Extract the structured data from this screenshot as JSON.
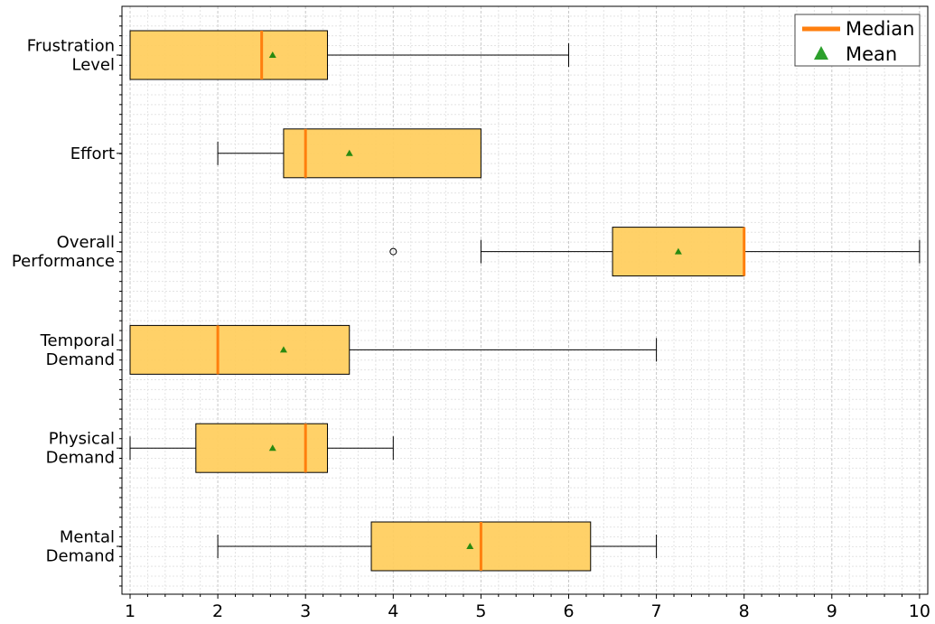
{
  "chart_data": {
    "type": "boxplot",
    "orientation": "horizontal",
    "title": "",
    "xlabel": "",
    "ylabel": "",
    "xlim": [
      0.92,
      10.1
    ],
    "x_ticks": [
      1,
      2,
      3,
      4,
      5,
      6,
      7,
      8,
      9,
      10
    ],
    "grid": true,
    "legend": {
      "position": "top-right",
      "entries": [
        {
          "label": "Median",
          "marker": "line",
          "color": "#ff7f0e"
        },
        {
          "label": "Mean",
          "marker": "triangle",
          "color": "#2ca02c"
        }
      ]
    },
    "colors": {
      "box_fill": "#ffcd5c",
      "median": "#ff7f0e",
      "mean": "#2a8a10",
      "grid": "#d3d3d3"
    },
    "categories": [
      {
        "lines": [
          "Frustration",
          "Level"
        ],
        "whisker_low": 1,
        "q1": 1,
        "median": 2.5,
        "q3": 3.25,
        "whisker_high": 6,
        "mean": 2.625,
        "outliers": []
      },
      {
        "lines": [
          "Effort"
        ],
        "whisker_low": 2,
        "q1": 2.75,
        "median": 3,
        "q3": 5,
        "whisker_high": 5,
        "mean": 3.5,
        "outliers": []
      },
      {
        "lines": [
          "Overall",
          "Performance"
        ],
        "whisker_low": 5,
        "q1": 6.5,
        "median": 8,
        "q3": 8,
        "whisker_high": 10,
        "mean": 7.25,
        "outliers": [
          4
        ]
      },
      {
        "lines": [
          "Temporal",
          "Demand"
        ],
        "whisker_low": 1,
        "q1": 1,
        "median": 2,
        "q3": 3.5,
        "whisker_high": 7,
        "mean": 2.75,
        "outliers": []
      },
      {
        "lines": [
          "Physical",
          "Demand"
        ],
        "whisker_low": 1,
        "q1": 1.75,
        "median": 3,
        "q3": 3.25,
        "whisker_high": 4,
        "mean": 2.625,
        "outliers": []
      },
      {
        "lines": [
          "Mental",
          "Demand"
        ],
        "whisker_low": 2,
        "q1": 3.75,
        "median": 5,
        "q3": 6.25,
        "whisker_high": 7,
        "mean": 4.875,
        "outliers": []
      }
    ]
  }
}
